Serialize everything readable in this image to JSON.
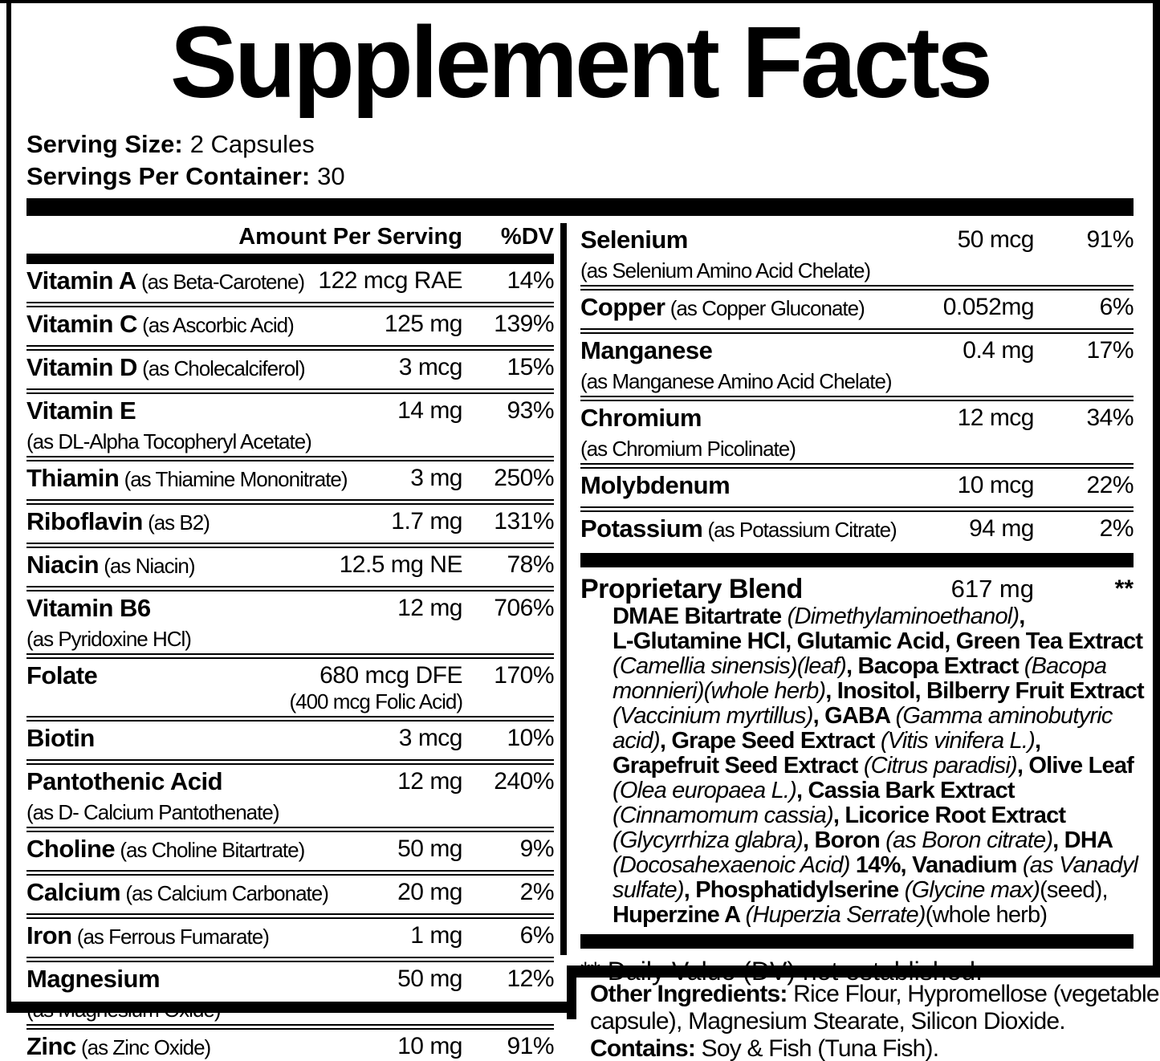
{
  "colors": {
    "text": "#000000",
    "background": "#ffffff"
  },
  "title": "Supplement Facts",
  "serving": {
    "size_label": "Serving Size:",
    "size_value": "2 Capsules",
    "container_label": "Servings Per Container:",
    "container_value": "30"
  },
  "table": {
    "header": {
      "amount": "Amount Per Serving",
      "dv": "%DV"
    },
    "left_rows": [
      {
        "name": "Vitamin A",
        "form": "(as Beta-Carotene)",
        "amount": "122 mcg RAE",
        "dv": "14%"
      },
      {
        "name": "Vitamin C",
        "form": "(as Ascorbic Acid)",
        "amount": "125 mg",
        "dv": "139%"
      },
      {
        "name": "Vitamin D",
        "form": "(as Cholecalciferol)",
        "amount": "3 mcg",
        "dv": "15%"
      },
      {
        "name": "Vitamin E",
        "sub": "(as DL-Alpha Tocopheryl Acetate)",
        "amount": "14 mg",
        "dv": "93%"
      },
      {
        "name": "Thiamin",
        "form": "(as Thiamine Mononitrate)",
        "amount": "3 mg",
        "dv": "250%"
      },
      {
        "name": "Riboflavin",
        "form": "(as B2)",
        "amount": "1.7 mg",
        "dv": "131%"
      },
      {
        "name": "Niacin",
        "form": "(as Niacin)",
        "amount": "12.5 mg NE",
        "dv": "78%"
      },
      {
        "name": "Vitamin B6",
        "sub": "(as Pyridoxine HCl)",
        "amount": "12 mg",
        "dv": "706%"
      },
      {
        "name": "Folate",
        "amount": "680 mcg DFE",
        "amount_sub": "(400 mcg Folic Acid)",
        "dv": "170%"
      },
      {
        "name": "Biotin",
        "amount": "3 mcg",
        "dv": "10%"
      },
      {
        "name": "Pantothenic Acid",
        "sub": "(as D- Calcium Pantothenate)",
        "amount": "12 mg",
        "dv": "240%"
      },
      {
        "name": "Choline",
        "form": "(as Choline Bitartrate)",
        "amount": "50 mg",
        "dv": "9%"
      },
      {
        "name": "Calcium",
        "form": "(as Calcium Carbonate)",
        "amount": "20 mg",
        "dv": "2%"
      },
      {
        "name": "Iron",
        "form": "(as Ferrous Fumarate)",
        "amount": "1 mg",
        "dv": "6%"
      },
      {
        "name": "Magnesium",
        "sub": "(as Magnesium Oxide)",
        "amount": "50 mg",
        "dv": "12%"
      },
      {
        "name": "Zinc",
        "form": "(as Zinc Oxide)",
        "amount": "10 mg",
        "dv": "91%"
      }
    ],
    "right_rows": [
      {
        "name": "Selenium",
        "sub": "(as Selenium Amino Acid Chelate)",
        "amount": "50 mcg",
        "dv": "91%"
      },
      {
        "name": "Copper",
        "form": "(as Copper Gluconate)",
        "amount": "0.052mg",
        "dv": "6%"
      },
      {
        "name": "Manganese",
        "sub": "(as Manganese Amino Acid Chelate)",
        "amount": "0.4 mg",
        "dv": "17%"
      },
      {
        "name": "Chromium",
        "sub": "(as Chromium Picolinate)",
        "amount": "12 mcg",
        "dv": "34%"
      },
      {
        "name": "Molybdenum",
        "amount": "10 mcg",
        "dv": "22%"
      },
      {
        "name": "Potassium",
        "form": "(as Potassium Citrate)",
        "amount": "94 mg",
        "dv": "2%"
      }
    ]
  },
  "proprietary_blend": {
    "name": "Proprietary Blend",
    "amount": "617 mg",
    "dv": "**",
    "lines": [
      [
        {
          "t": "DMAE Bitartrate ",
          "b": 1
        },
        {
          "t": "(Dimethylaminoethanol)",
          "i": 1
        },
        {
          "t": ",",
          "b": 1
        }
      ],
      [
        {
          "t": "L-Glutamine HCl, Glutamic Acid, Green Tea Extract",
          "b": 1
        }
      ],
      [
        {
          "t": "(Camellia sinensis)(leaf)",
          "i": 1
        },
        {
          "t": ", Bacopa Extract ",
          "b": 1
        },
        {
          "t": "(Bacopa",
          "i": 1
        }
      ],
      [
        {
          "t": "monnieri)(whole herb)",
          "i": 1
        },
        {
          "t": ", Inositol, Bilberry Fruit Extract",
          "b": 1
        }
      ],
      [
        {
          "t": "(Vaccinium myrtillus)",
          "i": 1
        },
        {
          "t": ", GABA ",
          "b": 1
        },
        {
          "t": "(Gamma aminobutyric",
          "i": 1
        }
      ],
      [
        {
          "t": "acid)",
          "i": 1
        },
        {
          "t": ", Grape Seed Extract ",
          "b": 1
        },
        {
          "t": "(Vitis vinifera L.)",
          "i": 1
        },
        {
          "t": ",",
          "b": 1
        }
      ],
      [
        {
          "t": "Grapefruit Seed Extract ",
          "b": 1
        },
        {
          "t": "(Citrus paradisi)",
          "i": 1
        },
        {
          "t": ", Olive Leaf",
          "b": 1
        }
      ],
      [
        {
          "t": "(Olea europaea L.)",
          "i": 1
        },
        {
          "t": ", Cassia Bark Extract",
          "b": 1
        }
      ],
      [
        {
          "t": "(Cinnamomum cassia)",
          "i": 1
        },
        {
          "t": ", Licorice Root Extract",
          "b": 1
        }
      ],
      [
        {
          "t": "(Glycyrrhiza glabra)",
          "i": 1
        },
        {
          "t": ", Boron ",
          "b": 1
        },
        {
          "t": "(as Boron citrate)",
          "i": 1
        },
        {
          "t": ", DHA",
          "b": 1
        }
      ],
      [
        {
          "t": "(Docosahexaenoic Acid)",
          "i": 1
        },
        {
          "t": " 14%, Vanadium ",
          "b": 1
        },
        {
          "t": "(as Vanadyl",
          "i": 1
        }
      ],
      [
        {
          "t": "sulfate)",
          "i": 1
        },
        {
          "t": ", Phosphatidylserine ",
          "b": 1
        },
        {
          "t": "(Glycine max)",
          "i": 1
        },
        {
          "t": "(seed),"
        }
      ],
      [
        {
          "t": "Huperzine A ",
          "b": 1
        },
        {
          "t": "(Huperzia Serrate)",
          "i": 1
        },
        {
          "t": "(whole herb)"
        }
      ]
    ]
  },
  "footnote": "** Daily Value (DV) not established.",
  "other_ingredients": {
    "lines": [
      [
        {
          "t": "Other Ingredients: ",
          "b": 1
        },
        {
          "t": "Rice Flour, Hypromellose (vegetable"
        }
      ],
      [
        {
          "t": "capsule), Magnesium Stearate, Silicon Dioxide."
        }
      ],
      [
        {
          "t": "Contains: ",
          "b": 1
        },
        {
          "t": "Soy & Fish (Tuna Fish)."
        }
      ]
    ]
  }
}
